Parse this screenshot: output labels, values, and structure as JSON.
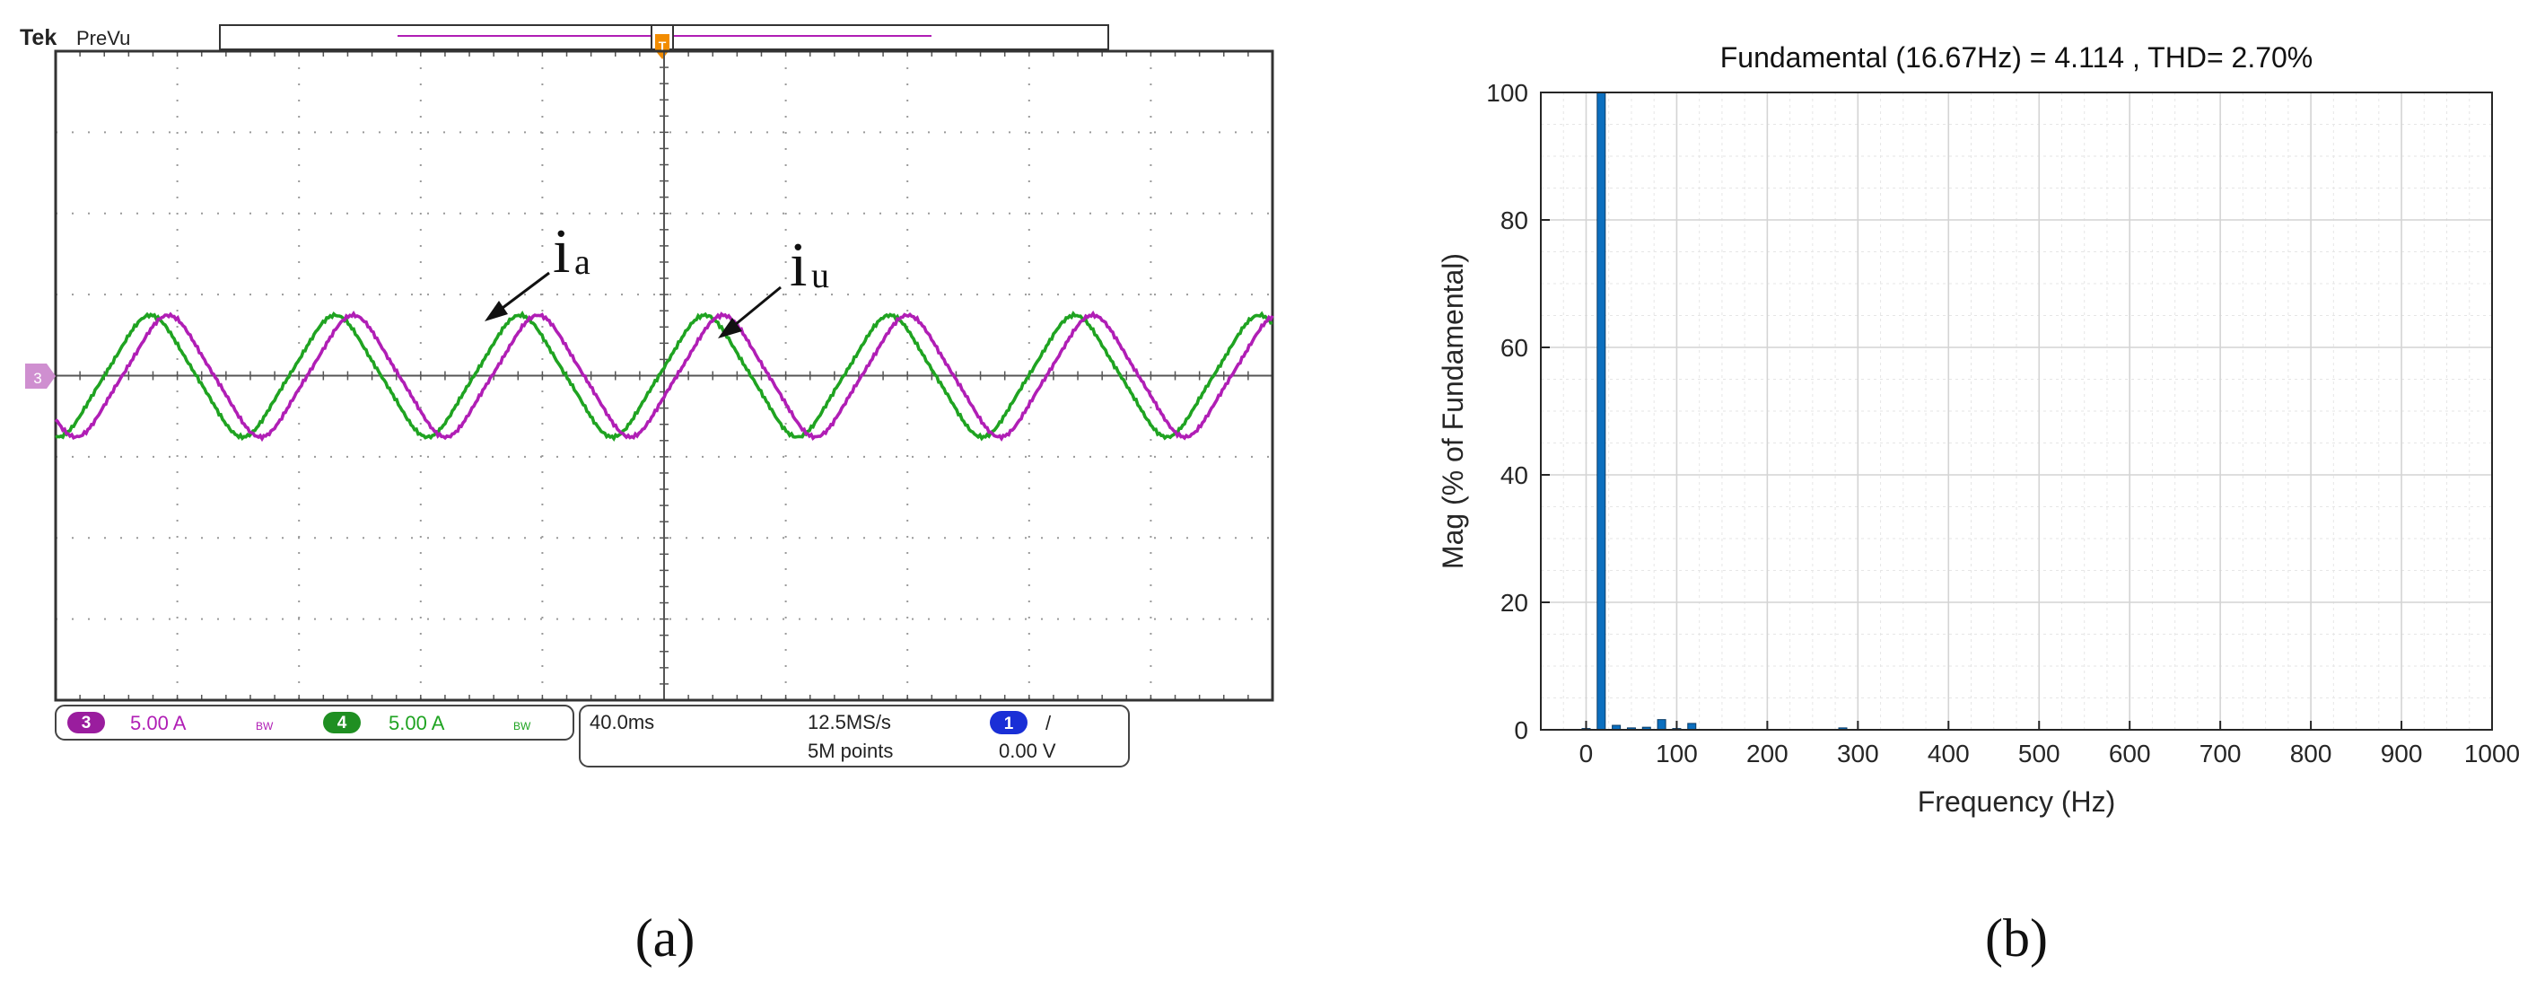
{
  "panel_a": {
    "brand": "Tek",
    "mode": "PreVu",
    "channel_marker": "3",
    "trace_labels": [
      {
        "letter": "i",
        "sub": "a",
        "channel": 3
      },
      {
        "letter": "i",
        "sub": "u",
        "channel": 4
      }
    ],
    "status": {
      "ch3_num": "3",
      "ch3_scale": "5.00 A",
      "ch3_bw": "BW",
      "ch4_num": "4",
      "ch4_scale": "5.00 A",
      "ch4_bw": "BW",
      "timebase": "40.0ms",
      "sample_rate": "12.5MS/s",
      "record_length": "5M points",
      "trigger_channel": "1",
      "trigger_slope": "/",
      "trigger_level": "0.00 V"
    },
    "colors": {
      "ch3": "#b01eb5",
      "ch4": "#1fa321",
      "ch1": "#1a2fd6",
      "trigger": "#f28c00",
      "grid": "#9a9a9a"
    },
    "caption": "(a)"
  },
  "chart_data": {
    "type": "bar",
    "title": "Fundamental (16.67Hz) = 4.114 , THD= 2.70%",
    "xlabel": "Frequency (Hz)",
    "ylabel": "Mag (% of Fundamental)",
    "xlim": [
      -50,
      1000
    ],
    "ylim": [
      0,
      100
    ],
    "xticks": [
      0,
      100,
      200,
      300,
      400,
      500,
      600,
      700,
      800,
      900,
      1000
    ],
    "yticks": [
      0,
      20,
      40,
      60,
      80,
      100
    ],
    "grid": true,
    "bar_color": "#0b6fbf",
    "x": [
      0,
      16.67,
      33.33,
      50,
      66.67,
      83.33,
      100,
      116.67,
      283.33
    ],
    "values": [
      0.2,
      100,
      0.7,
      0.3,
      0.4,
      1.6,
      0.2,
      1.0,
      0.3
    ],
    "caption": "(b)"
  }
}
